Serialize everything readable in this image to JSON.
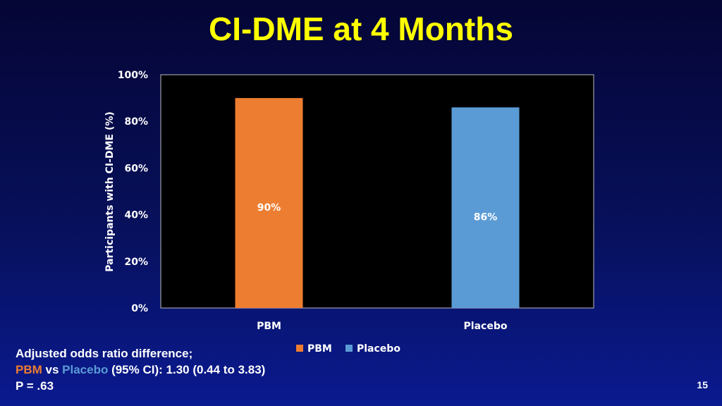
{
  "page_number": "15",
  "notes": {
    "line1": "Adjusted odds ratio difference;",
    "pbm": "PBM",
    "vs": " vs ",
    "placebo": "Placebo",
    "rest": " (95% CI): 1.30 (0.44 to 3.83)",
    "p_value": "P = .63"
  },
  "colors": {
    "pbm": "#ed7d31",
    "placebo": "#5b9bd5",
    "title": "#ffff00",
    "plot_bg": "#000000"
  },
  "chart_data": {
    "type": "bar",
    "title": "CI-DME at 4 Months",
    "xlabel": "",
    "ylabel": "Participants with CI-DME (%)",
    "ylim": [
      0,
      100
    ],
    "yticks": [
      "0%",
      "20%",
      "40%",
      "60%",
      "80%",
      "100%"
    ],
    "categories": [
      "PBM",
      "Placebo"
    ],
    "values": [
      90,
      86
    ],
    "data_labels": [
      "90%",
      "86%"
    ],
    "legend": [
      "PBM",
      "Placebo"
    ],
    "legend_position": "bottom",
    "grid": false
  }
}
